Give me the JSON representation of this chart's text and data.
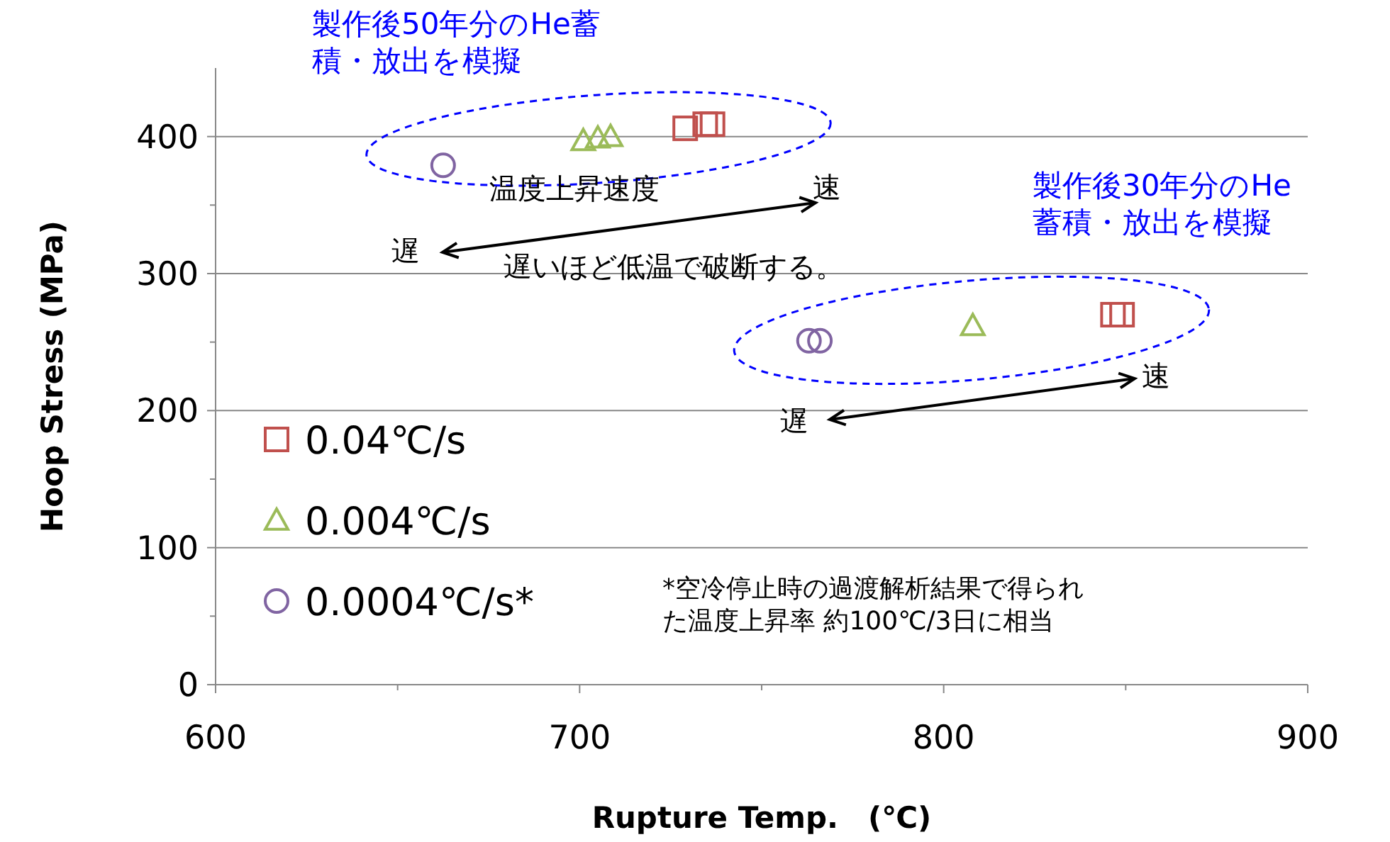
{
  "chart_data": {
    "type": "scatter",
    "xlabel": "Rupture Temp.　(℃)",
    "ylabel": "Hoop Stress (MPa)",
    "xlim": [
      600,
      900
    ],
    "xticks": [
      600,
      {
        "value": 650,
        "label": null
      },
      700,
      {
        "value": 750,
        "label": null
      },
      800,
      {
        "value": 850,
        "label": null
      },
      900
    ],
    "ylim": [
      0,
      450
    ],
    "yticks": [
      0,
      {
        "value": 50,
        "label": null
      },
      100,
      {
        "value": 150,
        "label": null
      },
      200,
      {
        "value": 250,
        "label": null
      },
      300,
      {
        "value": 350,
        "label": null
      },
      400
    ],
    "grid": "y",
    "legend": "left",
    "series": [
      {
        "name": "0.04℃/s",
        "color": "#c0504d",
        "marker": "square",
        "x": [
          729,
          734.5,
          736.5,
          846.5,
          849
        ],
        "values": [
          406,
          409,
          409,
          270,
          270
        ]
      },
      {
        "name": "0.004℃/s",
        "color": "#9bbb59",
        "marker": "triangle",
        "x": [
          701,
          705,
          708.5,
          808
        ],
        "values": [
          397,
          399,
          400,
          262
        ]
      },
      {
        "name": "0.0004℃/s*",
        "color": "#8064a2",
        "marker": "circle",
        "x": [
          662.5,
          763,
          766
        ],
        "values": [
          379,
          251,
          251
        ]
      }
    ],
    "annotations": [
      "製作後50年分のHe蓄積・放出を模擬",
      "製作後30年分のHe蓄積・放出を模擬",
      "温度上昇速度",
      "速",
      "遅",
      "遅いほど低温で破断する。",
      "速",
      "遅",
      "*空冷停止時の過渡解析結果で得られた温度上昇率 約100℃/3日に相当"
    ]
  }
}
